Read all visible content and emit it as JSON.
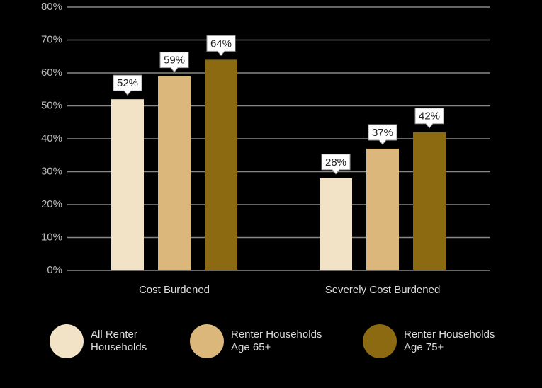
{
  "chart_data": {
    "type": "bar",
    "categories": [
      "Cost Burdened",
      "Severely Cost Burdened"
    ],
    "series": [
      {
        "name": "All Renter Households",
        "color": "#f2e3c6",
        "values": [
          52,
          28
        ],
        "value_labels": [
          "52%",
          "28%"
        ]
      },
      {
        "name": "Renter Households Age 65+",
        "color": "#dbb77b",
        "values": [
          59,
          37
        ],
        "value_labels": [
          "59%",
          "37%"
        ]
      },
      {
        "name": "Renter Households Age 75+",
        "color": "#8c6a12",
        "values": [
          64,
          42
        ],
        "value_labels": [
          "64%",
          "42%"
        ]
      }
    ],
    "ylim": [
      0,
      80
    ],
    "yticks": [
      {
        "value": 0,
        "label": "0%"
      },
      {
        "value": 10,
        "label": "10%"
      },
      {
        "value": 20,
        "label": "20%"
      },
      {
        "value": 30,
        "label": "30%"
      },
      {
        "value": 40,
        "label": "40%"
      },
      {
        "value": 50,
        "label": "50%"
      },
      {
        "value": 60,
        "label": "60%"
      },
      {
        "value": 70,
        "label": "70%"
      },
      {
        "value": 80,
        "label": "80%"
      }
    ],
    "grid": true,
    "legend": "bottom"
  }
}
